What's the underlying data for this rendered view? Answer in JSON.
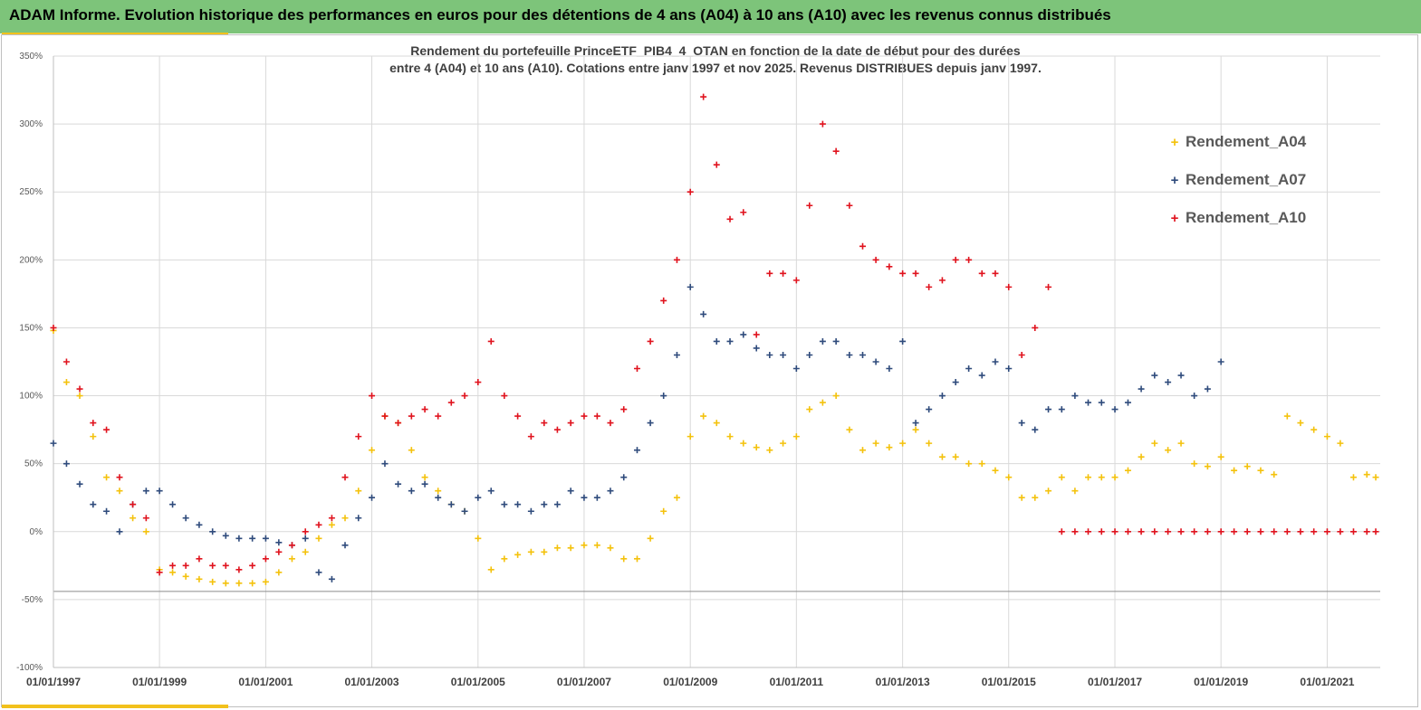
{
  "banner": {
    "title": "ADAM Informe. Evolution historique des performances en euros pour des détentions de 4 ans (A04) à 10 ans (A10) avec les revenus connus distribués"
  },
  "colors": {
    "banner": "#7dc47a",
    "accent": "#f2c11c",
    "A04": "#f4c20d",
    "A07": "#2f4b7c",
    "A10": "#e0131e"
  },
  "chart_data": {
    "type": "scatter",
    "title_line1": "Rendement du portefeuille PrinceETF_PIB4_4_OTAN  en fonction de la date de début pour des durées",
    "title_line2": "entre 4 (A04) et 10 ans (A10). Cotations  entre janv 1997 et nov 2025. Revenus DISTRIBUES depuis janv 1997.",
    "xlabel": "",
    "ylabel": "",
    "xlim": [
      "1997-01-01",
      "2022-01-01"
    ],
    "ylim": [
      -100,
      350
    ],
    "y_ticks": [
      350,
      300,
      250,
      200,
      150,
      100,
      50,
      0,
      -50,
      -100
    ],
    "y_tick_labels": [
      "350%",
      "300%",
      "250%",
      "200%",
      "150%",
      "100%",
      "50%",
      "0%",
      "-50%",
      "-100%"
    ],
    "x_ticks": [
      "1997-01-01",
      "1999-01-01",
      "2001-01-01",
      "2003-01-01",
      "2005-01-01",
      "2007-01-01",
      "2009-01-01",
      "2011-01-01",
      "2013-01-01",
      "2015-01-01",
      "2017-01-01",
      "2019-01-01",
      "2021-01-01"
    ],
    "x_tick_labels": [
      "01/01/1997",
      "01/01/1999",
      "01/01/2001",
      "01/01/2003",
      "01/01/2005",
      "01/01/2007",
      "01/01/2009",
      "01/01/2011",
      "01/01/2013",
      "01/01/2015",
      "01/01/2017",
      "01/01/2019",
      "01/01/2021"
    ],
    "grid": true,
    "legend_position": "top-right",
    "reference_line_y": -44,
    "series": [
      {
        "name": "Rendement_A04",
        "color": "#f4c20d",
        "x": [
          "1997-01-01",
          "1997-04-01",
          "1997-07-01",
          "1997-10-01",
          "1998-01-01",
          "1998-04-01",
          "1998-07-01",
          "1998-10-01",
          "1999-01-01",
          "1999-04-01",
          "1999-07-01",
          "1999-10-01",
          "2000-01-01",
          "2000-04-01",
          "2000-07-01",
          "2000-10-01",
          "2001-01-01",
          "2001-04-01",
          "2001-07-01",
          "2001-10-01",
          "2002-01-01",
          "2002-04-01",
          "2002-07-01",
          "2002-10-01",
          "2003-01-01",
          "2003-04-01",
          "2003-07-01",
          "2003-10-01",
          "2004-01-01",
          "2004-04-01",
          "2004-07-01",
          "2004-10-01",
          "2005-01-01",
          "2005-04-01",
          "2005-07-01",
          "2005-10-01",
          "2006-01-01",
          "2006-04-01",
          "2006-07-01",
          "2006-10-01",
          "2007-01-01",
          "2007-04-01",
          "2007-07-01",
          "2007-10-01",
          "2008-01-01",
          "2008-04-01",
          "2008-07-01",
          "2008-10-01",
          "2009-01-01",
          "2009-04-01",
          "2009-07-01",
          "2009-10-01",
          "2010-01-01",
          "2010-04-01",
          "2010-07-01",
          "2010-10-01",
          "2011-01-01",
          "2011-04-01",
          "2011-07-01",
          "2011-10-01",
          "2012-01-01",
          "2012-04-01",
          "2012-07-01",
          "2012-10-01",
          "2013-01-01",
          "2013-04-01",
          "2013-07-01",
          "2013-10-01",
          "2014-01-01",
          "2014-04-01",
          "2014-07-01",
          "2014-10-01",
          "2015-01-01",
          "2015-04-01",
          "2015-07-01",
          "2015-10-01",
          "2016-01-01",
          "2016-04-01",
          "2016-07-01",
          "2016-10-01",
          "2017-01-01",
          "2017-04-01",
          "2017-07-01",
          "2017-10-01",
          "2018-01-01",
          "2018-04-01",
          "2018-07-01",
          "2018-10-01",
          "2019-01-01",
          "2019-04-01",
          "2019-07-01",
          "2019-10-01",
          "2020-01-01",
          "2020-04-01",
          "2020-07-01",
          "2020-10-01",
          "2021-01-01",
          "2021-04-01",
          "2021-07-01",
          "2021-10-01",
          "2021-12-01"
        ],
        "y": [
          148,
          110,
          100,
          70,
          40,
          30,
          10,
          0,
          -28,
          -30,
          -33,
          -35,
          -37,
          -38,
          -38,
          -38,
          -37,
          -30,
          -20,
          -15,
          -5,
          5,
          10,
          30,
          60,
          85,
          80,
          60,
          40,
          30,
          20,
          15,
          -5,
          -28,
          -20,
          -17,
          -15,
          -15,
          -12,
          -12,
          -10,
          -10,
          -12,
          -20,
          -20,
          -5,
          15,
          25,
          70,
          85,
          80,
          70,
          65,
          62,
          60,
          65,
          70,
          90,
          95,
          100,
          75,
          60,
          65,
          62,
          65,
          75,
          65,
          55,
          55,
          50,
          50,
          45,
          40,
          25,
          25,
          30,
          40,
          30,
          40,
          40,
          40,
          45,
          55,
          65,
          60,
          65,
          50,
          48,
          55,
          45,
          48,
          45,
          42,
          85,
          80,
          75,
          70,
          65,
          40,
          42,
          40
        ]
      },
      {
        "name": "Rendement_A07",
        "color": "#2f4b7c",
        "x": [
          "1997-01-01",
          "1997-04-01",
          "1997-07-01",
          "1997-10-01",
          "1998-01-01",
          "1998-04-01",
          "1998-07-01",
          "1998-10-01",
          "1999-01-01",
          "1999-04-01",
          "1999-07-01",
          "1999-10-01",
          "2000-01-01",
          "2000-04-01",
          "2000-07-01",
          "2000-10-01",
          "2001-01-01",
          "2001-04-01",
          "2001-07-01",
          "2001-10-01",
          "2002-01-01",
          "2002-04-01",
          "2002-07-01",
          "2002-10-01",
          "2003-01-01",
          "2003-04-01",
          "2003-07-01",
          "2003-10-01",
          "2004-01-01",
          "2004-04-01",
          "2004-07-01",
          "2004-10-01",
          "2005-01-01",
          "2005-04-01",
          "2005-07-01",
          "2005-10-01",
          "2006-01-01",
          "2006-04-01",
          "2006-07-01",
          "2006-10-01",
          "2007-01-01",
          "2007-04-01",
          "2007-07-01",
          "2007-10-01",
          "2008-01-01",
          "2008-04-01",
          "2008-07-01",
          "2008-10-01",
          "2009-01-01",
          "2009-04-01",
          "2009-07-01",
          "2009-10-01",
          "2010-01-01",
          "2010-04-01",
          "2010-07-01",
          "2010-10-01",
          "2011-01-01",
          "2011-04-01",
          "2011-07-01",
          "2011-10-01",
          "2012-01-01",
          "2012-04-01",
          "2012-07-01",
          "2012-10-01",
          "2013-01-01",
          "2013-04-01",
          "2013-07-01",
          "2013-10-01",
          "2014-01-01",
          "2014-04-01",
          "2014-07-01",
          "2014-10-01",
          "2015-01-01",
          "2015-04-01",
          "2015-07-01",
          "2015-10-01",
          "2016-01-01",
          "2016-04-01",
          "2016-07-01",
          "2016-10-01",
          "2017-01-01",
          "2017-04-01",
          "2017-07-01",
          "2017-10-01",
          "2018-01-01",
          "2018-04-01",
          "2018-07-01",
          "2018-10-01",
          "2019-01-01"
        ],
        "y": [
          65,
          50,
          35,
          20,
          15,
          0,
          20,
          30,
          30,
          20,
          10,
          5,
          0,
          -3,
          -5,
          -5,
          -5,
          -8,
          -10,
          -5,
          -30,
          -35,
          -10,
          10,
          25,
          50,
          35,
          30,
          35,
          25,
          20,
          15,
          25,
          30,
          20,
          20,
          15,
          20,
          20,
          30,
          25,
          25,
          30,
          40,
          60,
          80,
          100,
          130,
          180,
          160,
          140,
          140,
          145,
          135,
          130,
          130,
          120,
          130,
          140,
          140,
          130,
          130,
          125,
          120,
          140,
          80,
          90,
          100,
          110,
          120,
          115,
          125,
          120,
          80,
          75,
          90,
          90,
          100,
          95,
          95,
          90,
          95,
          105,
          115,
          110,
          115,
          100,
          105,
          125
        ]
      },
      {
        "name": "Rendement_A10",
        "color": "#e0131e",
        "x": [
          "1997-01-01",
          "1997-04-01",
          "1997-07-01",
          "1997-10-01",
          "1998-01-01",
          "1998-04-01",
          "1998-07-01",
          "1998-10-01",
          "1999-01-01",
          "1999-04-01",
          "1999-07-01",
          "1999-10-01",
          "2000-01-01",
          "2000-04-01",
          "2000-07-01",
          "2000-10-01",
          "2001-01-01",
          "2001-04-01",
          "2001-07-01",
          "2001-10-01",
          "2002-01-01",
          "2002-04-01",
          "2002-07-01",
          "2002-10-01",
          "2003-01-01",
          "2003-04-01",
          "2003-07-01",
          "2003-10-01",
          "2004-01-01",
          "2004-04-01",
          "2004-07-01",
          "2004-10-01",
          "2005-01-01",
          "2005-04-01",
          "2005-07-01",
          "2005-10-01",
          "2006-01-01",
          "2006-04-01",
          "2006-07-01",
          "2006-10-01",
          "2007-01-01",
          "2007-04-01",
          "2007-07-01",
          "2007-10-01",
          "2008-01-01",
          "2008-04-01",
          "2008-07-01",
          "2008-10-01",
          "2009-01-01",
          "2009-04-01",
          "2009-07-01",
          "2009-10-01",
          "2010-01-01",
          "2010-04-01",
          "2010-07-01",
          "2010-10-01",
          "2011-01-01",
          "2011-04-01",
          "2011-07-01",
          "2011-10-01",
          "2012-01-01",
          "2012-04-01",
          "2012-07-01",
          "2012-10-01",
          "2013-01-01",
          "2013-04-01",
          "2013-07-01",
          "2013-10-01",
          "2014-01-01",
          "2014-04-01",
          "2014-07-01",
          "2014-10-01",
          "2015-01-01",
          "2015-04-01",
          "2015-07-01",
          "2015-10-01",
          "2016-01-01",
          "2016-04-01",
          "2016-07-01",
          "2016-10-01",
          "2017-01-01",
          "2017-04-01",
          "2017-07-01",
          "2017-10-01",
          "2018-01-01",
          "2018-04-01",
          "2018-07-01",
          "2018-10-01",
          "2019-01-01",
          "2019-04-01",
          "2019-07-01",
          "2019-10-01",
          "2020-01-01",
          "2020-04-01",
          "2020-07-01",
          "2020-10-01",
          "2021-01-01",
          "2021-04-01",
          "2021-07-01",
          "2021-10-01",
          "2021-12-01"
        ],
        "y": [
          150,
          125,
          105,
          80,
          75,
          40,
          20,
          10,
          -30,
          -25,
          -25,
          -20,
          -25,
          -25,
          -28,
          -25,
          -20,
          -15,
          -10,
          0,
          5,
          10,
          40,
          70,
          100,
          85,
          80,
          85,
          90,
          85,
          95,
          100,
          110,
          140,
          100,
          85,
          70,
          80,
          75,
          80,
          85,
          85,
          80,
          90,
          120,
          140,
          170,
          200,
          250,
          320,
          270,
          230,
          235,
          145,
          190,
          190,
          185,
          240,
          300,
          280,
          240,
          210,
          200,
          195,
          190,
          190,
          180,
          185,
          200,
          200,
          190,
          190,
          180,
          130,
          150,
          180,
          0,
          0,
          0,
          0,
          0,
          0,
          0,
          0,
          0,
          0,
          0,
          0,
          0,
          0,
          0,
          0,
          0,
          0,
          0,
          0,
          0,
          0,
          0,
          0,
          0
        ]
      }
    ]
  }
}
